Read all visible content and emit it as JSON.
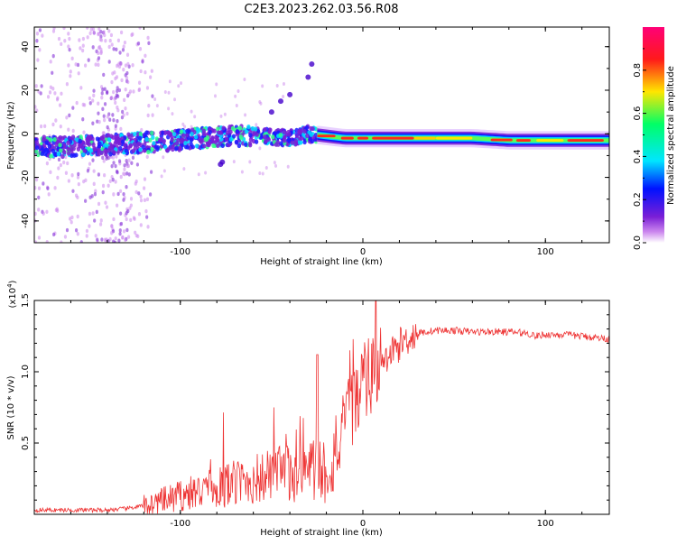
{
  "title": "C2E3.2023.262.03.56.R08",
  "chart_data": [
    {
      "type": "heatmap",
      "name": "spectrogram",
      "xlabel": "Height of straight line (km)",
      "ylabel": "Frequency (Hz)",
      "xlim": [
        -180,
        135
      ],
      "ylim": [
        -50,
        49
      ],
      "x_ticks": [
        -100,
        0,
        100
      ],
      "y_ticks": [
        -40,
        -20,
        0,
        20,
        40
      ],
      "colorbar": {
        "label": "Normalized spectral amplitude",
        "range": [
          0,
          1
        ],
        "ticks": [
          "0.0",
          "0.2",
          "0.4",
          "0.6",
          "0.8"
        ],
        "tick_values": [
          0,
          0.2,
          0.4,
          0.6,
          0.8
        ],
        "colormap": [
          "#ffffff",
          "#cc88ee",
          "#7a1fd6",
          "#0011ff",
          "#00e6ff",
          "#00ff66",
          "#ffe600",
          "#ff1a1a",
          "#ff0077"
        ]
      },
      "ridge": {
        "note_x_km": [
          -180,
          -160,
          -140,
          -120,
          -100,
          -80,
          -60,
          -40,
          -30,
          -20,
          -10,
          0,
          20,
          40,
          60,
          80,
          100,
          120,
          135
        ],
        "frequency_hz": [
          -6,
          -6,
          -5,
          -4,
          -3,
          -1,
          -1,
          -2,
          0,
          -1,
          -2,
          -2,
          -2,
          -2,
          -2,
          -3,
          -3,
          -3,
          -3
        ]
      }
    },
    {
      "type": "line",
      "name": "snr",
      "xlabel": "Height of straight line (km)",
      "ylabel": "SNR (10 * v/v)",
      "scale_label": "(x10",
      "scale_exp": "4",
      "scale_close": ")",
      "xlim": [
        -180,
        135
      ],
      "ylim": [
        0,
        1.5
      ],
      "x_ticks": [
        -100,
        0,
        100
      ],
      "y_ticks": [
        "0.5",
        "1.0",
        "1.5"
      ],
      "y_tick_values": [
        0.5,
        1.0,
        1.5
      ],
      "series": [
        {
          "color": "#ee3333",
          "x": [
            -180,
            -160,
            -140,
            -130,
            -120,
            -110,
            -100,
            -90,
            -80,
            -70,
            -60,
            -50,
            -40,
            -30,
            -25,
            -20,
            -15,
            -10,
            -5,
            0,
            5,
            10,
            15,
            20,
            25,
            30,
            40,
            50,
            60,
            70,
            80,
            90,
            95,
            100,
            110,
            120,
            135
          ],
          "y": [
            0.03,
            0.03,
            0.03,
            0.04,
            0.06,
            0.09,
            0.13,
            0.16,
            0.19,
            0.22,
            0.24,
            0.27,
            0.29,
            0.31,
            0.33,
            0.3,
            0.4,
            0.62,
            0.78,
            0.9,
            0.98,
            1.04,
            1.12,
            1.19,
            1.24,
            1.27,
            1.29,
            1.29,
            1.28,
            1.28,
            1.28,
            1.27,
            1.25,
            1.26,
            1.26,
            1.25,
            1.23
          ]
        }
      ]
    }
  ]
}
